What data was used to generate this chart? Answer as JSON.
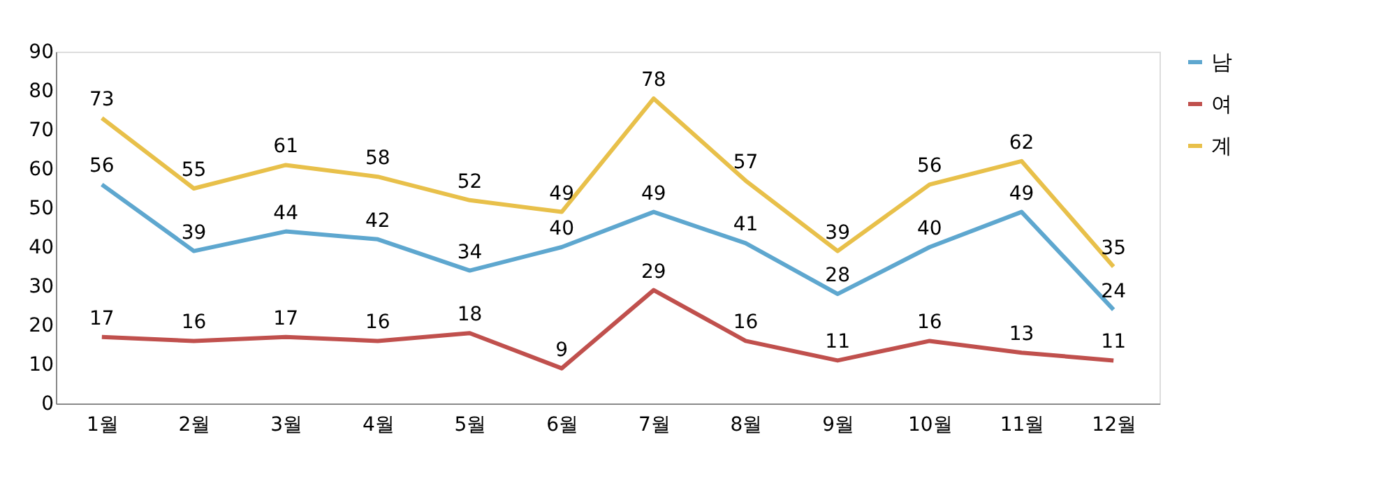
{
  "chart_data": {
    "type": "line",
    "categories": [
      "1월",
      "2월",
      "3월",
      "4월",
      "5월",
      "6월",
      "7월",
      "8월",
      "9월",
      "10월",
      "11월",
      "12월"
    ],
    "series": [
      {
        "name": "남",
        "color": "#5ea7cf",
        "values": [
          56,
          39,
          44,
          42,
          34,
          40,
          49,
          41,
          28,
          40,
          49,
          24
        ]
      },
      {
        "name": "여",
        "color": "#c0504d",
        "values": [
          17,
          16,
          17,
          16,
          18,
          9,
          29,
          16,
          11,
          16,
          13,
          11
        ]
      },
      {
        "name": "계",
        "color": "#e8c04a",
        "values": [
          73,
          55,
          61,
          58,
          52,
          49,
          78,
          57,
          39,
          56,
          62,
          35
        ]
      }
    ],
    "ylim": [
      0,
      90
    ],
    "yticks": [
      0,
      10,
      20,
      30,
      40,
      50,
      60,
      70,
      80,
      90
    ],
    "grid": false,
    "legend": "right",
    "data_labels": true,
    "marker": "none",
    "line_style": "solid"
  }
}
